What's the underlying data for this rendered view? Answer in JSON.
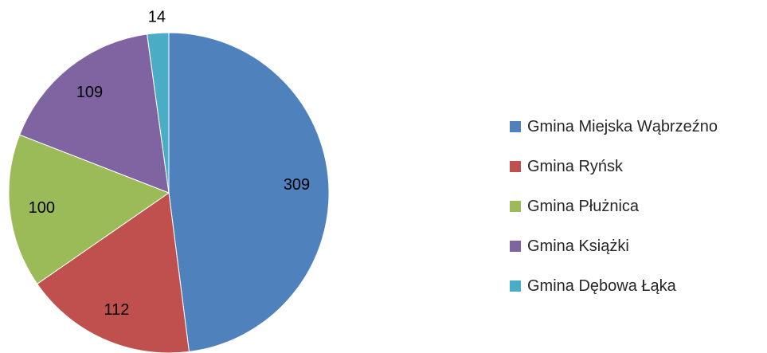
{
  "chart_data": {
    "type": "pie",
    "title": "",
    "categories": [
      "Gmina Miejska Wąbrzeźno",
      "Gmina Ryńsk",
      "Gmina Płużnica",
      "Gmina Książki",
      "Gmina Dębowa Łąka"
    ],
    "values": [
      309,
      112,
      100,
      109,
      14
    ],
    "colors": [
      "#4F81BD",
      "#C0504D",
      "#9BBB59",
      "#8064A2",
      "#4BACC6"
    ],
    "data_labels": [
      "309",
      "112",
      "100",
      "109",
      "14"
    ],
    "legend_position": "right",
    "start_angle": "12 o'clock",
    "direction": "clockwise"
  }
}
